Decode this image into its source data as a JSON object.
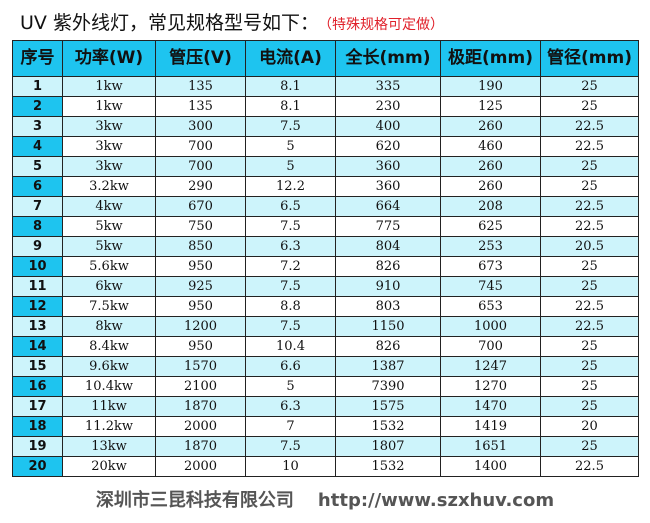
{
  "title": {
    "main": "UV 紫外线灯，常见规格型号如下：",
    "note": "（特殊规格可定做）"
  },
  "watermark": {
    "company": "深圳市三昆科技有限公司",
    "url": "http://www.szxhuv.com"
  },
  "table": {
    "headers": [
      "序号",
      "功率(W)",
      "管压(V)",
      "电流(A)",
      "全长(mm)",
      "极距(mm)",
      "管径(mm)"
    ],
    "rows": [
      [
        "1",
        "1kw",
        "135",
        "8.1",
        "335",
        "190",
        "25"
      ],
      [
        "2",
        "1kw",
        "135",
        "8.1",
        "230",
        "125",
        "25"
      ],
      [
        "3",
        "3kw",
        "300",
        "7.5",
        "400",
        "260",
        "22.5"
      ],
      [
        "4",
        "3kw",
        "700",
        "5",
        "620",
        "460",
        "22.5"
      ],
      [
        "5",
        "3kw",
        "700",
        "5",
        "360",
        "260",
        "25"
      ],
      [
        "6",
        "3.2kw",
        "290",
        "12.2",
        "360",
        "260",
        "25"
      ],
      [
        "7",
        "4kw",
        "670",
        "6.5",
        "664",
        "208",
        "22.5"
      ],
      [
        "8",
        "5kw",
        "750",
        "7.5",
        "775",
        "625",
        "22.5"
      ],
      [
        "9",
        "5kw",
        "850",
        "6.3",
        "804",
        "253",
        "20.5"
      ],
      [
        "10",
        "5.6kw",
        "950",
        "7.2",
        "826",
        "673",
        "25"
      ],
      [
        "11",
        "6kw",
        "925",
        "7.5",
        "910",
        "745",
        "25"
      ],
      [
        "12",
        "7.5kw",
        "950",
        "8.8",
        "803",
        "653",
        "22.5"
      ],
      [
        "13",
        "8kw",
        "1200",
        "7.5",
        "1150",
        "1000",
        "22.5"
      ],
      [
        "14",
        "8.4kw",
        "950",
        "10.4",
        "826",
        "700",
        "25"
      ],
      [
        "15",
        "9.6kw",
        "1570",
        "6.6",
        "1387",
        "1247",
        "25"
      ],
      [
        "16",
        "10.4kw",
        "2100",
        "5",
        "7390",
        "1270",
        "25"
      ],
      [
        "17",
        "11kw",
        "1870",
        "6.3",
        "1575",
        "1470",
        "25"
      ],
      [
        "18",
        "11.2kw",
        "2000",
        "7",
        "1532",
        "1419",
        "20"
      ],
      [
        "19",
        "13kw",
        "1870",
        "7.5",
        "1807",
        "1651",
        "25"
      ],
      [
        "20",
        "20kw",
        "2000",
        "10",
        "1532",
        "1400",
        "22.5"
      ]
    ]
  }
}
